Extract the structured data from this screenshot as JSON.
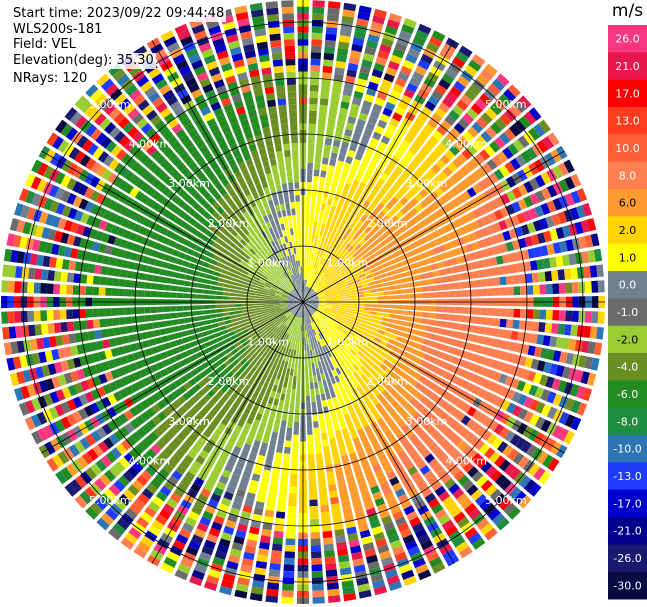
{
  "header": {
    "start_time": "Start time: 2023/09/22 09:44:48",
    "site": "WLS200s-181",
    "field": "Field: VEL",
    "elevation": "Elevation(deg): 35.30",
    "nrays": "NRays: 120"
  },
  "colorbar": {
    "unit": "m/s",
    "labels": [
      "26.0",
      "21.0",
      "17.0",
      "13.0",
      "10.0",
      "8.0",
      "6.0",
      "2.0",
      "1.0",
      "0.0",
      "-1.0",
      "-2.0",
      "-4.0",
      "-6.0",
      "-8.0",
      "-10.0",
      "-13.0",
      "-17.0",
      "-21.0",
      "-26.0",
      "-30.0"
    ],
    "colors": [
      "#f7377f",
      "#e8174c",
      "#ff0000",
      "#ff3c1e",
      "#ff5f35",
      "#ff7f50",
      "#ff9a2e",
      "#ffd400",
      "#ffff00",
      "#708090",
      "#6b6b6b",
      "#9acd32",
      "#6b8e23",
      "#228b22",
      "#1e8e3e",
      "#2e75b6",
      "#1e3cff",
      "#0000cd",
      "#00008b",
      "#191970",
      "#0a0a45"
    ]
  },
  "chart_data": {
    "type": "heatmap",
    "title": "",
    "field": "VEL",
    "units": "m/s",
    "elevation_deg": 35.3,
    "nrays": 120,
    "range_rings_km": [
      1.0,
      2.0,
      3.0,
      4.0,
      5.0
    ],
    "range_ring_labels": [
      "1.00km",
      "2.00km",
      "3.00km",
      "4.00km",
      "5.00km"
    ],
    "velocity_pattern": {
      "approaching_sector_color": "#228b22",
      "receding_sector_color": "#ff7f50",
      "zero_line_color": "#708090",
      "noise_beyond_km": 4.2
    }
  }
}
